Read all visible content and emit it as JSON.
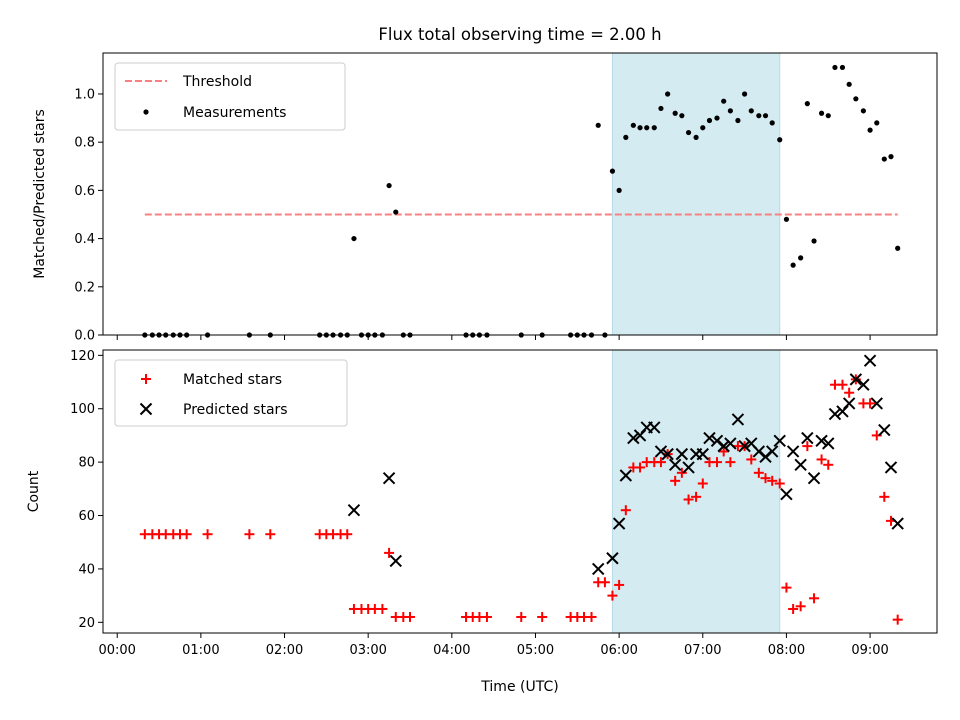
{
  "chart_data": [
    {
      "type": "scatter",
      "title": "Flux total observing time = 2.00 h",
      "xlabel": "",
      "ylabel": "Matched/Predicted stars",
      "ylim": [
        0,
        1.17
      ],
      "yticks": [
        0.0,
        0.2,
        0.4,
        0.6,
        0.8,
        1.0
      ],
      "ytick_labels": [
        "0.0",
        "0.2",
        "0.4",
        "0.6",
        "0.8",
        "1.0"
      ],
      "xlim_hours": [
        -0.17,
        9.8
      ],
      "shaded_span_hours": [
        5.92,
        7.92
      ],
      "shaded_color": "#d4ebf1",
      "legend_position": "top-left",
      "threshold": {
        "name": "Threshold",
        "value": 0.5,
        "x_range_hours": [
          0.33,
          9.33
        ],
        "color": "#f88080"
      },
      "series": [
        {
          "name": "Measurements",
          "color": "#000000",
          "marker": "dot",
          "x_hours": [
            0.33,
            0.42,
            0.5,
            0.58,
            0.67,
            0.75,
            0.83,
            1.08,
            1.58,
            1.83,
            2.42,
            2.5,
            2.58,
            2.67,
            2.75,
            2.83,
            2.92,
            3.0,
            3.08,
            3.17,
            3.25,
            3.33,
            3.42,
            3.5,
            4.17,
            4.25,
            4.33,
            4.42,
            4.83,
            5.08,
            5.42,
            5.5,
            5.58,
            5.67,
            5.75,
            5.83,
            5.92,
            6.0,
            6.08,
            6.17,
            6.25,
            6.33,
            6.42,
            6.5,
            6.58,
            6.67,
            6.75,
            6.83,
            6.92,
            7.0,
            7.08,
            7.17,
            7.25,
            7.33,
            7.42,
            7.5,
            7.58,
            7.67,
            7.75,
            7.83,
            7.92,
            8.0,
            8.08,
            8.17,
            8.25,
            8.33,
            8.42,
            8.5,
            8.58,
            8.67,
            8.75,
            8.83,
            8.92,
            9.0,
            9.08,
            9.17,
            9.25,
            9.33
          ],
          "y": [
            0,
            0,
            0,
            0,
            0,
            0,
            0,
            0,
            0,
            0,
            0,
            0,
            0,
            0,
            0,
            0.4,
            0,
            0,
            0,
            0,
            0.62,
            0.51,
            0,
            0,
            0,
            0,
            0,
            0,
            0,
            0,
            0,
            0,
            0,
            0,
            0.87,
            0,
            0.68,
            0.6,
            0.82,
            0.87,
            0.86,
            0.86,
            0.86,
            0.94,
            1.0,
            0.92,
            0.91,
            0.84,
            0.82,
            0.86,
            0.89,
            0.9,
            0.97,
            0.93,
            0.89,
            1.0,
            0.93,
            0.91,
            0.91,
            0.88,
            0.81,
            0.48,
            0.29,
            0.32,
            0.96,
            0.39,
            0.92,
            0.91,
            1.11,
            1.11,
            1.04,
            0.98,
            0.93,
            0.85,
            0.88,
            0.73,
            0.74,
            0.36
          ]
        }
      ]
    },
    {
      "type": "scatter",
      "title": "",
      "xlabel": "Time (UTC)",
      "ylabel": "Count",
      "ylim": [
        16,
        122
      ],
      "yticks": [
        20,
        40,
        60,
        80,
        100,
        120
      ],
      "ytick_labels": [
        "20",
        "40",
        "60",
        "80",
        "100",
        "120"
      ],
      "xlim_hours": [
        -0.17,
        9.8
      ],
      "xticks_hours": [
        0,
        1,
        2,
        3,
        4,
        5,
        6,
        7,
        8,
        9
      ],
      "xtick_labels": [
        "00:00",
        "01:00",
        "02:00",
        "03:00",
        "04:00",
        "05:00",
        "06:00",
        "07:00",
        "08:00",
        "09:00"
      ],
      "shaded_span_hours": [
        5.92,
        7.92
      ],
      "shaded_color": "#d4ebf1",
      "legend_position": "top-left",
      "series": [
        {
          "name": "Matched stars",
          "color": "#ff0000",
          "marker": "plus",
          "x_hours": [
            0.33,
            0.42,
            0.5,
            0.58,
            0.67,
            0.75,
            0.83,
            1.08,
            1.58,
            1.83,
            2.42,
            2.5,
            2.58,
            2.67,
            2.75,
            2.83,
            2.92,
            3.0,
            3.08,
            3.17,
            3.25,
            3.33,
            3.42,
            3.5,
            4.17,
            4.25,
            4.33,
            4.42,
            4.83,
            5.08,
            5.42,
            5.5,
            5.58,
            5.67,
            5.75,
            5.83,
            5.92,
            6.0,
            6.08,
            6.17,
            6.25,
            6.33,
            6.42,
            6.5,
            6.58,
            6.67,
            6.75,
            6.83,
            6.92,
            7.0,
            7.08,
            7.17,
            7.25,
            7.33,
            7.42,
            7.5,
            7.58,
            7.67,
            7.75,
            7.83,
            7.92,
            8.0,
            8.08,
            8.17,
            8.25,
            8.33,
            8.42,
            8.5,
            8.58,
            8.67,
            8.75,
            8.83,
            8.92,
            9.0,
            9.08,
            9.17,
            9.25,
            9.33
          ],
          "y": [
            53,
            53,
            53,
            53,
            53,
            53,
            53,
            53,
            53,
            53,
            53,
            53,
            53,
            53,
            53,
            25,
            25,
            25,
            25,
            25,
            46,
            22,
            22,
            22,
            22,
            22,
            22,
            22,
            22,
            22,
            22,
            22,
            22,
            22,
            35,
            35,
            30,
            34,
            62,
            78,
            78,
            80,
            80,
            80,
            83,
            73,
            76,
            66,
            67,
            72,
            80,
            80,
            84,
            80,
            86,
            86,
            81,
            76,
            74,
            73,
            72,
            33,
            25,
            26,
            86,
            29,
            81,
            79,
            109,
            109,
            106,
            111,
            102,
            102,
            90,
            67,
            58,
            21
          ]
        },
        {
          "name": "Predicted stars",
          "color": "#000000",
          "marker": "cross",
          "x_hours": [
            2.83,
            3.25,
            3.33,
            5.75,
            5.92,
            6.0,
            6.08,
            6.17,
            6.25,
            6.33,
            6.42,
            6.5,
            6.58,
            6.67,
            6.75,
            6.83,
            6.92,
            7.0,
            7.08,
            7.17,
            7.25,
            7.33,
            7.42,
            7.5,
            7.58,
            7.67,
            7.75,
            7.83,
            7.92,
            8.0,
            8.08,
            8.17,
            8.25,
            8.33,
            8.42,
            8.5,
            8.58,
            8.67,
            8.75,
            8.83,
            8.92,
            9.0,
            9.08,
            9.17,
            9.25,
            9.33
          ],
          "y": [
            62,
            74,
            43,
            40,
            44,
            57,
            75,
            89,
            90,
            93,
            93,
            84,
            83,
            79,
            83,
            78,
            83,
            83,
            89,
            88,
            86,
            87,
            96,
            86,
            87,
            84,
            82,
            84,
            88,
            68,
            84,
            79,
            89,
            74,
            88,
            87,
            98,
            99,
            102,
            111,
            109,
            118,
            102,
            92,
            78,
            57
          ]
        }
      ]
    }
  ]
}
